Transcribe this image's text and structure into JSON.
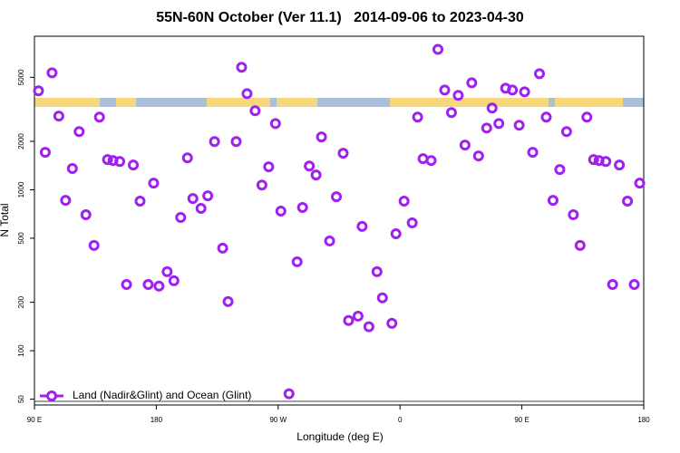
{
  "chart_data": {
    "type": "scatter",
    "title": "55N-60N October (Ver 11.1)   2014-09-06 to 2023-04-30",
    "x_label": "Longitude (deg E)",
    "y_label": "N Total",
    "log_scale": "y",
    "legend_position": "bottom-left",
    "xlim": [
      90,
      540
    ],
    "xticks": [
      {
        "value": 90,
        "label": "90 E"
      },
      {
        "value": 180,
        "label": "180"
      },
      {
        "value": 270,
        "label": "90 W"
      },
      {
        "value": 360,
        "label": "0"
      },
      {
        "value": 450,
        "label": "90 E"
      },
      {
        "value": 540,
        "label": "180"
      }
    ],
    "ylim": [
      46,
      9000
    ],
    "yticks": [
      50,
      100,
      200,
      500,
      1000,
      2000,
      5000
    ],
    "series": [
      {
        "name": "Land (Nadir&Glint) and Ocean (Glint)",
        "color": "#a020f0",
        "x": [
          93,
          98,
          103,
          108,
          113,
          118,
          123,
          128,
          134,
          138,
          144,
          148,
          153,
          158,
          163,
          168,
          174,
          178,
          182,
          188,
          193,
          198,
          203,
          207,
          213,
          218,
          223,
          229,
          233,
          239,
          243,
          247,
          253,
          258,
          263,
          268,
          272,
          278,
          284,
          288,
          293,
          298,
          302,
          308,
          313,
          318,
          322,
          329,
          332,
          337,
          343,
          347,
          354,
          357,
          363,
          369,
          373,
          377,
          383,
          388,
          393,
          398,
          403,
          408,
          413,
          418,
          424,
          428,
          433,
          438,
          443,
          448,
          452,
          458,
          463,
          468,
          473,
          478,
          483,
          488,
          493,
          498,
          503,
          507,
          512,
          517,
          522,
          528,
          533,
          537
        ],
        "values": [
          4120,
          1710,
          5330,
          2870,
          860,
          1355,
          2300,
          700,
          451,
          2830,
          1540,
          1520,
          1500,
          258,
          1425,
          850,
          258,
          1100,
          252,
          310,
          272,
          673,
          1580,
          883,
          766,
          918,
          1995,
          434,
          202,
          1995,
          5770,
          3960,
          3100,
          1070,
          1390,
          2580,
          737,
          54,
          357,
          776,
          1406,
          1236,
          2130,
          481,
          906,
          1687,
          154,
          164,
          592,
          141,
          310,
          213,
          148,
          533,
          850,
          623,
          2830,
          1560,
          1520,
          7460,
          4170,
          3020,
          3860,
          1895,
          4620,
          1622,
          2420,
          3220,
          2580,
          4280,
          4170,
          2520,
          4060,
          1710,
          5260,
          2830,
          860,
          1337,
          2300,
          700,
          451,
          2830,
          1540,
          1520,
          1500,
          258,
          1425,
          850,
          258,
          1100
        ]
      }
    ]
  }
}
